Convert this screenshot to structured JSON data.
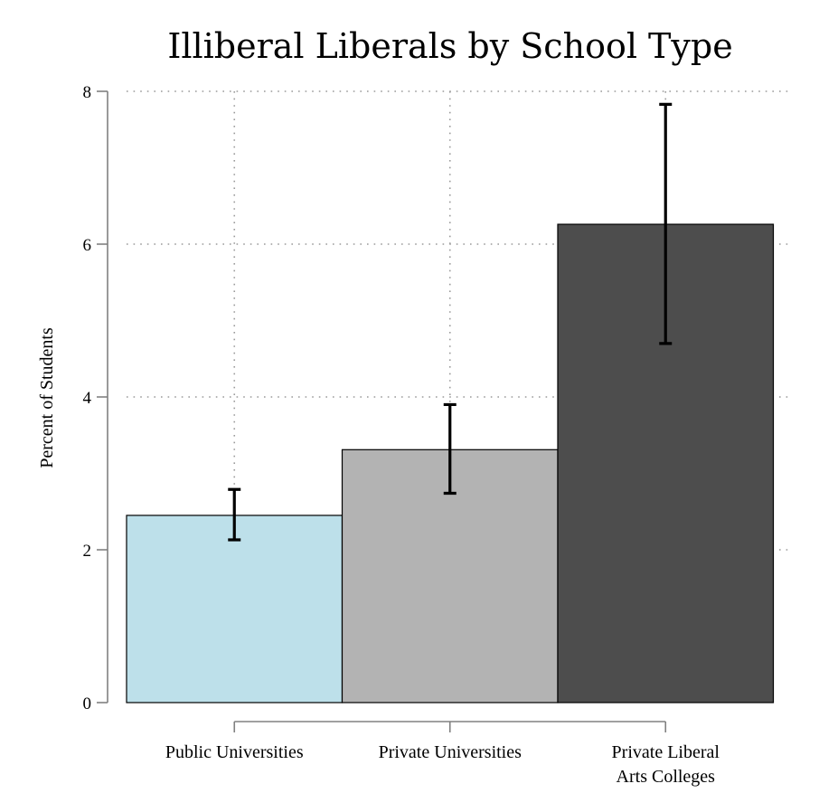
{
  "chart_data": {
    "type": "bar",
    "title": "Illiberal Liberals by School Type",
    "xlabel": "",
    "ylabel": "Percent of Students",
    "ylim": [
      0,
      8
    ],
    "yticks": [
      0,
      2,
      4,
      6,
      8
    ],
    "grid": true,
    "categories": [
      [
        "Public Universities"
      ],
      [
        "Private Universities"
      ],
      [
        "Private Liberal",
        "Arts Colleges"
      ]
    ],
    "values": [
      2.45,
      3.31,
      6.26
    ],
    "error_low": [
      2.13,
      2.74,
      4.7
    ],
    "error_high": [
      2.79,
      3.9,
      7.83
    ],
    "colors": [
      "#bde0ea",
      "#b3b3b3",
      "#4d4d4d"
    ]
  }
}
